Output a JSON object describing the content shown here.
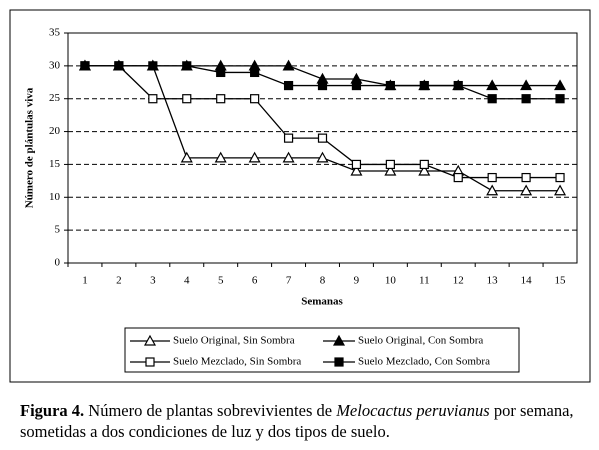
{
  "chart_data": {
    "type": "line",
    "x_label": "Semanas",
    "y_label": "Número de plántulas viva",
    "categories": [
      "1",
      "2",
      "3",
      "4",
      "5",
      "6",
      "7",
      "8",
      "9",
      "10",
      "11",
      "12",
      "13",
      "14",
      "15"
    ],
    "ylim": [
      0,
      35
    ],
    "yticks": [
      0,
      5,
      10,
      15,
      20,
      25,
      30,
      35
    ],
    "grid": "dashed",
    "series": [
      {
        "name": "Suelo Original, Sin Sombra",
        "color": "#000000",
        "marker": "triangle",
        "marker_fill": "#ffffff",
        "values": [
          30,
          30,
          30,
          16,
          16,
          16,
          16,
          16,
          14,
          14,
          14,
          14,
          11,
          11,
          11
        ]
      },
      {
        "name": "Suelo Original, Con Sombra",
        "color": "#000000",
        "marker": "triangle",
        "marker_fill": "#000000",
        "values": [
          30,
          30,
          30,
          30,
          30,
          30,
          30,
          28,
          28,
          27,
          27,
          27,
          27,
          27,
          27
        ]
      },
      {
        "name": "Suelo Mezclado, Sin Sombra",
        "color": "#000000",
        "marker": "square",
        "marker_fill": "#ffffff",
        "values": [
          30,
          30,
          25,
          25,
          25,
          25,
          19,
          19,
          15,
          15,
          15,
          13,
          13,
          13,
          13
        ]
      },
      {
        "name": "Suelo Mezclado, Con Sombra",
        "color": "#000000",
        "marker": "square",
        "marker_fill": "#000000",
        "values": [
          30,
          30,
          30,
          30,
          29,
          29,
          27,
          27,
          27,
          27,
          27,
          27,
          25,
          25,
          25
        ]
      }
    ]
  },
  "caption": {
    "label": "Figura 4.",
    "text_before": " Número de plantas sobrevivientes de ",
    "species": "Melocactus peruvianus",
    "text_after": " por semana, sometidas a dos condiciones de luz y dos tipos de suelo."
  }
}
